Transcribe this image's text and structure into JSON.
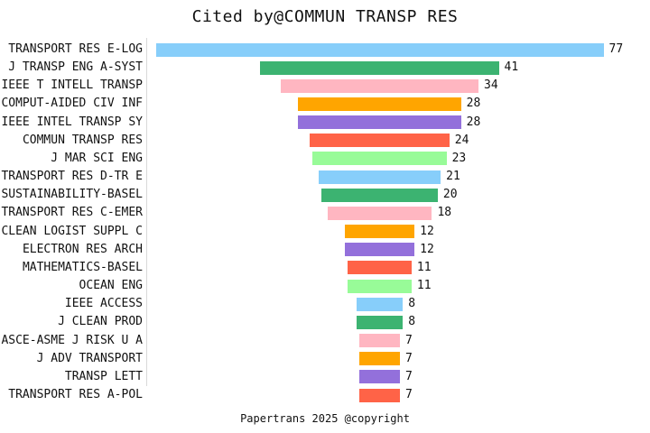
{
  "title": "Cited by@COMMUN TRANSP RES",
  "footer": "Papertrans 2025 @copyright",
  "colors": {
    "background": "#ffffff",
    "text": "#111111",
    "axis_line": "#d9d9d9",
    "palette": [
      "#87CEFA",
      "#3CB371",
      "#FFB6C1",
      "#FFA500",
      "#9370DB",
      "#FF6347",
      "#98FB98"
    ]
  },
  "chart_data": {
    "type": "bar",
    "subtype": "centered-horizontal-funnel",
    "title": "Cited by@COMMUN TRANSP RES",
    "xlabel": "",
    "ylabel": "",
    "xlim": [
      0,
      77
    ],
    "grid": false,
    "legend": false,
    "value_labels_shown": true,
    "categories": [
      "TRANSPORT RES E-LOG",
      "J TRANSP ENG A-SYST",
      "IEEE T INTELL TRANSP",
      "COMPUT-AIDED CIV INF",
      "IEEE INTEL TRANSP SY",
      "COMMUN TRANSP RES",
      "J MAR SCI ENG",
      "TRANSPORT RES D-TR E",
      "SUSTAINABILITY-BASEL",
      "TRANSPORT RES C-EMER",
      "CLEAN LOGIST SUPPL C",
      "ELECTRON RES ARCH",
      "MATHEMATICS-BASEL",
      "OCEAN ENG",
      "IEEE ACCESS",
      "J CLEAN PROD",
      "ASCE-ASME J RISK U A",
      "J ADV TRANSPORT",
      "TRANSP LETT",
      "TRANSPORT RES A-POL"
    ],
    "values": [
      77,
      41,
      34,
      28,
      28,
      24,
      23,
      21,
      20,
      18,
      12,
      12,
      11,
      11,
      8,
      8,
      7,
      7,
      7,
      7
    ]
  }
}
